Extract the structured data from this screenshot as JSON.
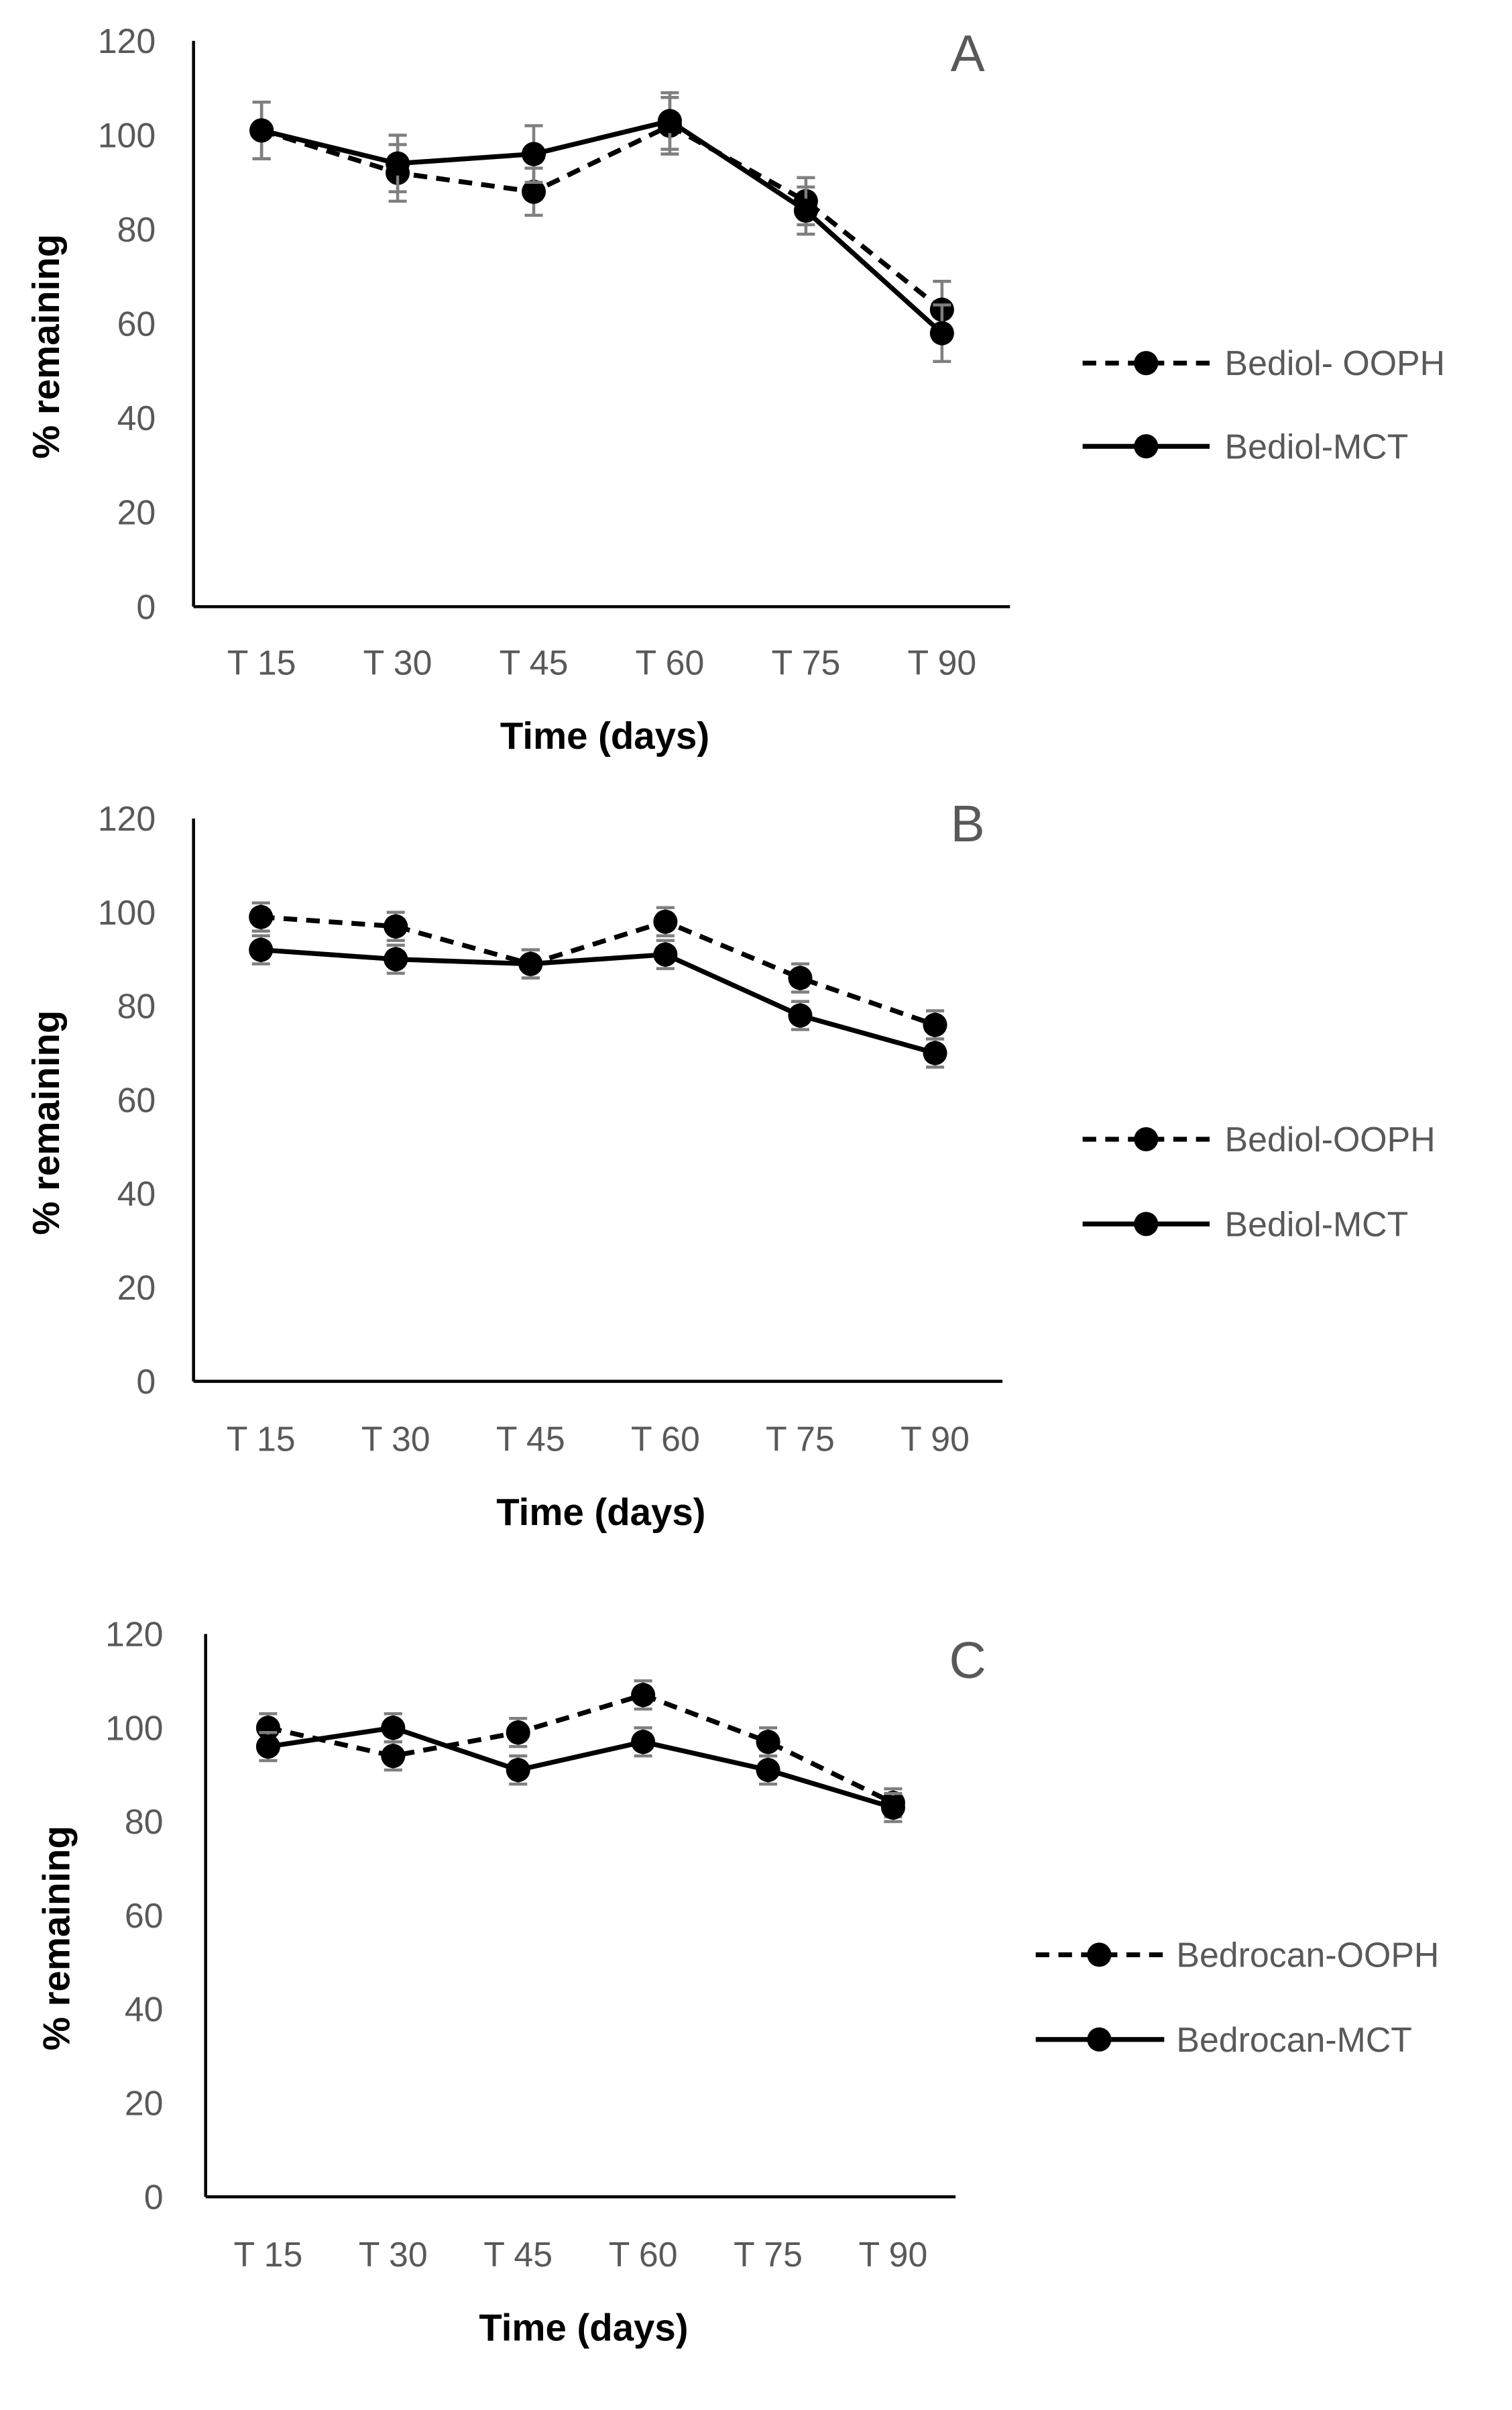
{
  "chart_data": [
    {
      "type": "line",
      "panel_label": "A",
      "categories": [
        "T 15",
        "T 30",
        "T 45",
        "T 60",
        "T 75",
        "T 90"
      ],
      "xlabel": "Time (days)",
      "ylabel": "% remaining",
      "ylim": [
        0,
        120
      ],
      "yticks": [
        "0",
        "20",
        "40",
        "60",
        "80",
        "100",
        "120"
      ],
      "grid": false,
      "legend_position": "right",
      "series": [
        {
          "name": "Bediol- OOPH",
          "style": "dashed",
          "values": [
            101,
            92,
            88,
            102,
            86,
            63
          ],
          "errors": [
            6,
            6,
            5,
            6,
            5,
            6
          ]
        },
        {
          "name": "Bediol-MCT",
          "style": "solid",
          "values": [
            101,
            94,
            96,
            103,
            84,
            58
          ],
          "errors": [
            6,
            6,
            6,
            6,
            5,
            6
          ]
        }
      ]
    },
    {
      "type": "line",
      "panel_label": "B",
      "categories": [
        "T 15",
        "T 30",
        "T 45",
        "T 60",
        "T 75",
        "T 90"
      ],
      "xlabel": "Time (days)",
      "ylabel": "% remaining",
      "ylim": [
        0,
        120
      ],
      "yticks": [
        "0",
        "20",
        "40",
        "60",
        "80",
        "100",
        "120"
      ],
      "grid": false,
      "legend_position": "right",
      "series": [
        {
          "name": "Bediol-OOPH",
          "style": "dashed",
          "values": [
            99,
            97,
            89,
            98,
            86,
            76
          ],
          "errors": [
            3,
            3,
            3,
            3,
            3,
            3
          ]
        },
        {
          "name": "Bediol-MCT",
          "style": "solid",
          "values": [
            92,
            90,
            89,
            91,
            78,
            70
          ],
          "errors": [
            3,
            3,
            3,
            3,
            3,
            3
          ]
        }
      ]
    },
    {
      "type": "line",
      "panel_label": "C",
      "categories": [
        "T 15",
        "T 30",
        "T 45",
        "T 60",
        "T 75",
        "T 90"
      ],
      "xlabel": "Time (days)",
      "ylabel": "% remaining",
      "ylim": [
        0,
        120
      ],
      "yticks": [
        "0",
        "20",
        "40",
        "60",
        "80",
        "100",
        "120"
      ],
      "grid": false,
      "legend_position": "right",
      "series": [
        {
          "name": "Bedrocan-OOPH",
          "style": "dashed",
          "values": [
            100,
            94,
            99,
            107,
            97,
            84
          ],
          "errors": [
            3,
            3,
            3,
            3,
            3,
            3
          ]
        },
        {
          "name": "Bedrocan-MCT",
          "style": "solid",
          "values": [
            96,
            100,
            91,
            97,
            91,
            83
          ],
          "errors": [
            3,
            3,
            3,
            3,
            3,
            3
          ]
        }
      ]
    }
  ]
}
